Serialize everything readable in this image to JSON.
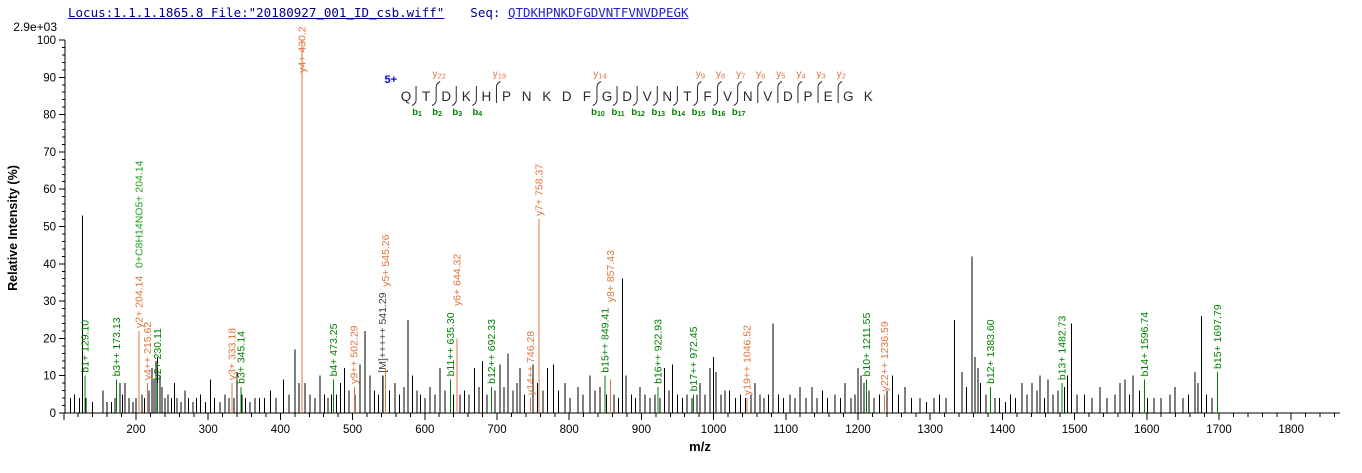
{
  "header": {
    "locus_file": "Locus:1.1.1.1865.8 File:\"20180927_001_ID_csb.wiff\"",
    "seq_label": "Seq: ",
    "sequence": "QTDKHPNKDFGDVNTFVNVDPEGK"
  },
  "sequence_panel": {
    "charge_label": "5+",
    "residues": "QTDKHPNKDFGDVNTFVNVDPEGK",
    "b_marks": [
      1,
      2,
      3,
      4,
      10,
      11,
      12,
      13,
      14,
      15,
      16,
      17
    ],
    "y_marks": [
      2,
      5,
      10,
      15,
      16,
      17,
      18,
      19,
      20,
      21,
      22
    ]
  },
  "colors": {
    "b_ion": "#008000",
    "y_ion": "#e0763c",
    "precursor": "#404040",
    "mod_label": "#23a023",
    "peak": "#000000",
    "axis": "#000000",
    "header_navy": "#00008b",
    "sequence_blue": "#2323cc",
    "charge_blue": "#0000ee",
    "residue_text": "#2b2b2b"
  },
  "chart_data": {
    "type": "bar",
    "title": "",
    "xlabel": "m/z",
    "ylabel": "Relative  Intensity (%)",
    "y_axis_top_label": "2.9e+03",
    "xlim": [
      100,
      1860
    ],
    "ylim": [
      0,
      100
    ],
    "x_ticks": [
      200,
      300,
      400,
      500,
      600,
      700,
      800,
      900,
      1000,
      1100,
      1200,
      1300,
      1400,
      1500,
      1600,
      1700,
      1800
    ],
    "y_ticks": [
      0,
      10,
      20,
      30,
      40,
      50,
      60,
      70,
      80,
      90,
      100
    ],
    "legend": "off",
    "grid": "off",
    "labeled_peaks": [
      {
        "mz": 129.1,
        "pct": 10,
        "text": "b1+ 129.10",
        "ion": "b"
      },
      {
        "mz": 173.13,
        "pct": 9,
        "text": "b3++ 173.13",
        "ion": "b"
      },
      {
        "mz": 204.14,
        "pct": 22,
        "text": "y2+ 204.14",
        "ion": "y"
      },
      {
        "mz": 204.14,
        "pct": 22,
        "text": "0+C8H14NO5+ 204.14",
        "ion": "mod",
        "no_line": true
      },
      {
        "mz": 215.62,
        "pct": 8,
        "text": "y4++ 215.62",
        "ion": "y"
      },
      {
        "mz": 230.11,
        "pct": 8,
        "text": "b2+ 230.11",
        "ion": "b"
      },
      {
        "mz": 333.18,
        "pct": 8,
        "text": "y3+ 333.18",
        "ion": "y"
      },
      {
        "mz": 345.14,
        "pct": 7,
        "text": "b3+ 345.14",
        "ion": "b"
      },
      {
        "mz": 430.2,
        "pct": 100,
        "text": "y4+ 430.2",
        "ion": "y"
      },
      {
        "mz": 473.25,
        "pct": 9,
        "text": "b4+ 473.25",
        "ion": "b"
      },
      {
        "mz": 502.29,
        "pct": 7,
        "text": "y9++ 502.29",
        "ion": "y"
      },
      {
        "mz": 541.29,
        "pct": 10,
        "text": "[M]+++++ 541.29",
        "ion": "M"
      },
      {
        "mz": 545.26,
        "pct": 12,
        "text": "y5+ 545.26",
        "ion": "y"
      },
      {
        "mz": 635.3,
        "pct": 9,
        "text": "b11++ 635.30",
        "ion": "b"
      },
      {
        "mz": 644.32,
        "pct": 20,
        "text": "y6+ 644.32",
        "ion": "y"
      },
      {
        "mz": 692.33,
        "pct": 7,
        "text": "b12++ 692.33",
        "ion": "b"
      },
      {
        "mz": 746.28,
        "pct": 4,
        "text": "y14++ 746.28",
        "ion": "y"
      },
      {
        "mz": 758.37,
        "pct": 52,
        "text": "y7+ 758.37",
        "ion": "y"
      },
      {
        "mz": 849.41,
        "pct": 10,
        "text": "b15++ 849.41",
        "ion": "b"
      },
      {
        "mz": 857.43,
        "pct": 9,
        "text": "y8+ 857.43",
        "ion": "y"
      },
      {
        "mz": 922.93,
        "pct": 7,
        "text": "b16++ 922.93",
        "ion": "b"
      },
      {
        "mz": 972.45,
        "pct": 5,
        "text": "b17++ 972.45",
        "ion": "b"
      },
      {
        "mz": 1046.52,
        "pct": 4,
        "text": "y19++ 1046.52",
        "ion": "y"
      },
      {
        "mz": 1211.55,
        "pct": 9,
        "text": "b10+ 1211.55",
        "ion": "b"
      },
      {
        "mz": 1236.59,
        "pct": 5,
        "text": "y22++ 1236.59",
        "ion": "y"
      },
      {
        "mz": 1383.6,
        "pct": 7,
        "text": "b12+ 1383.60",
        "ion": "b"
      },
      {
        "mz": 1482.73,
        "pct": 8,
        "text": "b13+ 1482.73",
        "ion": "b"
      },
      {
        "mz": 1596.74,
        "pct": 9,
        "text": "b14+ 1596.74",
        "ion": "b"
      },
      {
        "mz": 1697.79,
        "pct": 11,
        "text": "b15+ 1697.79",
        "ion": "b"
      }
    ],
    "unlabeled_peaks": [
      [
        109,
        4
      ],
      [
        115,
        5
      ],
      [
        122,
        4
      ],
      [
        126,
        53
      ],
      [
        131,
        4
      ],
      [
        140,
        3
      ],
      [
        154,
        6
      ],
      [
        160,
        3
      ],
      [
        166,
        3
      ],
      [
        171,
        4
      ],
      [
        178,
        8
      ],
      [
        181,
        5
      ],
      [
        185,
        8
      ],
      [
        190,
        4
      ],
      [
        196,
        3
      ],
      [
        200,
        4
      ],
      [
        208,
        5
      ],
      [
        212,
        4
      ],
      [
        218,
        6
      ],
      [
        222,
        12
      ],
      [
        225,
        9
      ],
      [
        228,
        14
      ],
      [
        230,
        15
      ],
      [
        233,
        10
      ],
      [
        236,
        7
      ],
      [
        240,
        4
      ],
      [
        244,
        5
      ],
      [
        249,
        4
      ],
      [
        253,
        8
      ],
      [
        257,
        4
      ],
      [
        262,
        3
      ],
      [
        268,
        6
      ],
      [
        273,
        4
      ],
      [
        279,
        3
      ],
      [
        284,
        4
      ],
      [
        289,
        5
      ],
      [
        296,
        3
      ],
      [
        303,
        9
      ],
      [
        309,
        4
      ],
      [
        316,
        3
      ],
      [
        323,
        5
      ],
      [
        329,
        4
      ],
      [
        336,
        4
      ],
      [
        340,
        11
      ],
      [
        347,
        5
      ],
      [
        352,
        4
      ],
      [
        358,
        3
      ],
      [
        365,
        4
      ],
      [
        371,
        4
      ],
      [
        378,
        4
      ],
      [
        386,
        6
      ],
      [
        394,
        4
      ],
      [
        404,
        9
      ],
      [
        412,
        5
      ],
      [
        420,
        17
      ],
      [
        426,
        8
      ],
      [
        434,
        8
      ],
      [
        441,
        5
      ],
      [
        448,
        4
      ],
      [
        455,
        10
      ],
      [
        461,
        5
      ],
      [
        466,
        4
      ],
      [
        471,
        5
      ],
      [
        478,
        5
      ],
      [
        483,
        8
      ],
      [
        489,
        12
      ],
      [
        495,
        6
      ],
      [
        503,
        5
      ],
      [
        510,
        13
      ],
      [
        517,
        22
      ],
      [
        524,
        10
      ],
      [
        530,
        6
      ],
      [
        536,
        5
      ],
      [
        542,
        10
      ],
      [
        551,
        6
      ],
      [
        559,
        8
      ],
      [
        565,
        5
      ],
      [
        571,
        7
      ],
      [
        577,
        25
      ],
      [
        583,
        10
      ],
      [
        589,
        6
      ],
      [
        594,
        5
      ],
      [
        600,
        4
      ],
      [
        607,
        7
      ],
      [
        614,
        5
      ],
      [
        621,
        12
      ],
      [
        628,
        6
      ],
      [
        640,
        5
      ],
      [
        649,
        5
      ],
      [
        655,
        6
      ],
      [
        661,
        5
      ],
      [
        669,
        12
      ],
      [
        675,
        7
      ],
      [
        680,
        14
      ],
      [
        686,
        5
      ],
      [
        697,
        6
      ],
      [
        704,
        13
      ],
      [
        710,
        7
      ],
      [
        715,
        16
      ],
      [
        722,
        6
      ],
      [
        728,
        8
      ],
      [
        732,
        12
      ],
      [
        738,
        5
      ],
      [
        750,
        13
      ],
      [
        756,
        8
      ],
      [
        764,
        6
      ],
      [
        770,
        12
      ],
      [
        778,
        13
      ],
      [
        785,
        6
      ],
      [
        794,
        8
      ],
      [
        801,
        4
      ],
      [
        812,
        7
      ],
      [
        819,
        5
      ],
      [
        829,
        10
      ],
      [
        836,
        6
      ],
      [
        843,
        7
      ],
      [
        852,
        5
      ],
      [
        862,
        5
      ],
      [
        868,
        4
      ],
      [
        874,
        36
      ],
      [
        879,
        10
      ],
      [
        886,
        5
      ],
      [
        892,
        4
      ],
      [
        898,
        7
      ],
      [
        905,
        5
      ],
      [
        912,
        4
      ],
      [
        919,
        5
      ],
      [
        926,
        4
      ],
      [
        932,
        12
      ],
      [
        938,
        6
      ],
      [
        943,
        13
      ],
      [
        950,
        5
      ],
      [
        957,
        4
      ],
      [
        963,
        5
      ],
      [
        970,
        4
      ],
      [
        977,
        5
      ],
      [
        981,
        8
      ],
      [
        988,
        5
      ],
      [
        995,
        12
      ],
      [
        1000,
        15
      ],
      [
        1003,
        11
      ],
      [
        1010,
        5
      ],
      [
        1016,
        6
      ],
      [
        1022,
        6
      ],
      [
        1030,
        4
      ],
      [
        1037,
        5
      ],
      [
        1044,
        4
      ],
      [
        1052,
        5
      ],
      [
        1057,
        8
      ],
      [
        1064,
        5
      ],
      [
        1070,
        4
      ],
      [
        1076,
        5
      ],
      [
        1082,
        24
      ],
      [
        1090,
        5
      ],
      [
        1097,
        4
      ],
      [
        1106,
        5
      ],
      [
        1113,
        4
      ],
      [
        1120,
        7
      ],
      [
        1128,
        4
      ],
      [
        1136,
        7
      ],
      [
        1143,
        4
      ],
      [
        1151,
        6
      ],
      [
        1158,
        4
      ],
      [
        1168,
        5
      ],
      [
        1176,
        4
      ],
      [
        1182,
        8
      ],
      [
        1190,
        4
      ],
      [
        1196,
        5
      ],
      [
        1200,
        12
      ],
      [
        1204,
        10
      ],
      [
        1208,
        8
      ],
      [
        1215,
        6
      ],
      [
        1222,
        4
      ],
      [
        1230,
        5
      ],
      [
        1240,
        6
      ],
      [
        1248,
        10
      ],
      [
        1256,
        5
      ],
      [
        1265,
        7
      ],
      [
        1274,
        4
      ],
      [
        1286,
        4
      ],
      [
        1295,
        3
      ],
      [
        1305,
        4
      ],
      [
        1313,
        5
      ],
      [
        1322,
        4
      ],
      [
        1334,
        25
      ],
      [
        1344,
        11
      ],
      [
        1350,
        7
      ],
      [
        1358,
        42
      ],
      [
        1362,
        15
      ],
      [
        1366,
        12
      ],
      [
        1370,
        8
      ],
      [
        1377,
        5
      ],
      [
        1390,
        4
      ],
      [
        1396,
        4
      ],
      [
        1404,
        3
      ],
      [
        1411,
        5
      ],
      [
        1418,
        4
      ],
      [
        1427,
        8
      ],
      [
        1434,
        5
      ],
      [
        1441,
        8
      ],
      [
        1448,
        6
      ],
      [
        1452,
        10
      ],
      [
        1458,
        4
      ],
      [
        1463,
        9
      ],
      [
        1470,
        5
      ],
      [
        1477,
        6
      ],
      [
        1486,
        7
      ],
      [
        1490,
        10
      ],
      [
        1496,
        24
      ],
      [
        1503,
        5
      ],
      [
        1514,
        5
      ],
      [
        1524,
        4
      ],
      [
        1535,
        7
      ],
      [
        1545,
        4
      ],
      [
        1556,
        5
      ],
      [
        1563,
        8
      ],
      [
        1570,
        9
      ],
      [
        1576,
        5
      ],
      [
        1581,
        10
      ],
      [
        1590,
        6
      ],
      [
        1601,
        4
      ],
      [
        1610,
        4
      ],
      [
        1620,
        4
      ],
      [
        1632,
        5
      ],
      [
        1639,
        7
      ],
      [
        1650,
        4
      ],
      [
        1658,
        5
      ],
      [
        1667,
        11
      ],
      [
        1671,
        8
      ],
      [
        1676,
        26
      ],
      [
        1683,
        5
      ],
      [
        1690,
        4
      ]
    ]
  }
}
